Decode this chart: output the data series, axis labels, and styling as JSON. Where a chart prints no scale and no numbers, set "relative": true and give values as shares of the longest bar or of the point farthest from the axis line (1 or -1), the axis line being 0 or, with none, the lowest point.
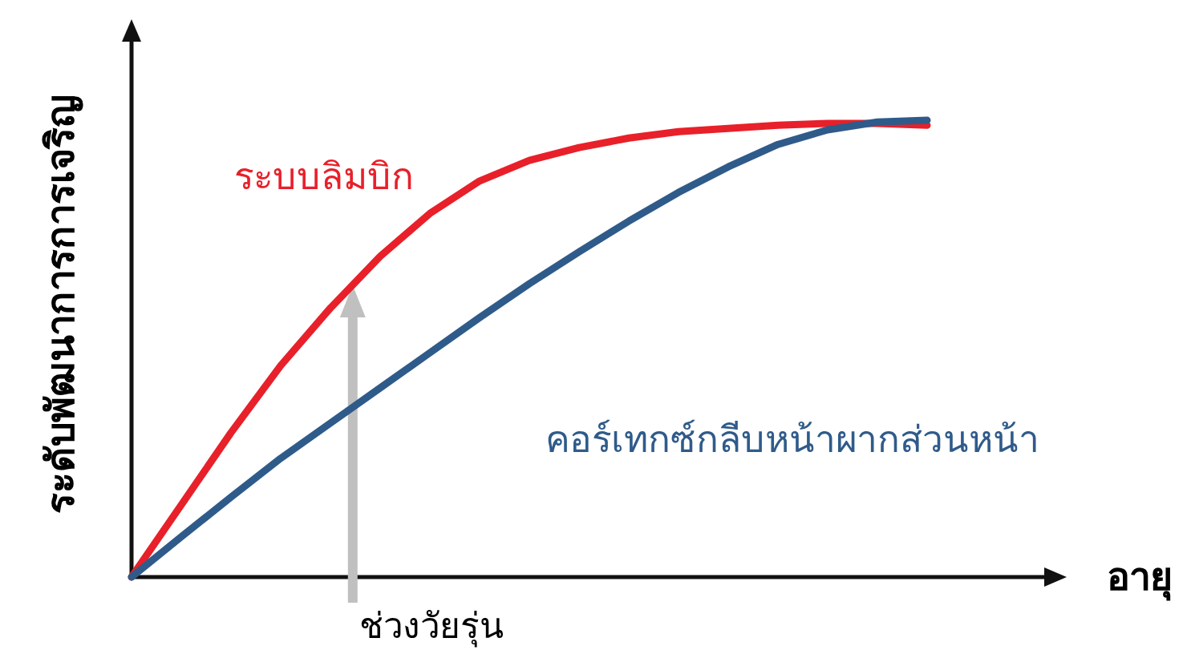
{
  "chart_data": {
    "type": "line",
    "relative": true,
    "xlabel": "อายุ",
    "ylabel": "ระดับพัฒนาการการเจริญ",
    "categories": [
      null,
      null,
      null,
      null,
      null,
      null,
      null,
      null,
      null,
      null,
      null,
      null,
      null,
      null,
      null,
      null,
      null
    ],
    "series": [
      {
        "name": "ระบบลิมบิก",
        "color": "#e8202a",
        "values": [
          0,
          0.158,
          0.316,
          0.463,
          0.589,
          0.702,
          0.796,
          0.867,
          0.912,
          0.94,
          0.961,
          0.975,
          0.982,
          0.989,
          0.993,
          0.993,
          0.989
        ]
      },
      {
        "name": "คอร์เทกซ์กลีบหน้าผากส่วนหน้า",
        "color": "#2f5b8a",
        "values": [
          0,
          0.088,
          0.175,
          0.26,
          0.337,
          0.414,
          0.491,
          0.568,
          0.642,
          0.712,
          0.779,
          0.842,
          0.898,
          0.947,
          0.979,
          0.996,
          1
        ]
      }
    ],
    "annotations": [
      "ช่วงวัยรุ่น"
    ]
  }
}
